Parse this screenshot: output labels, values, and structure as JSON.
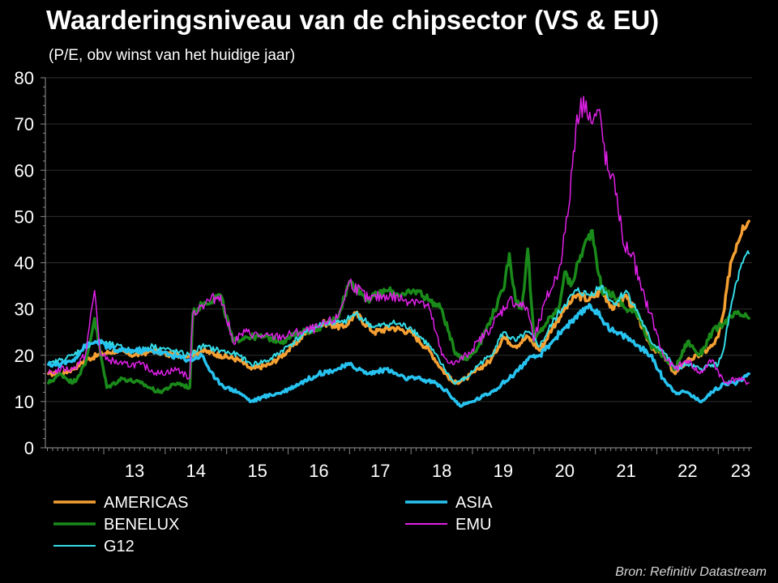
{
  "title": "Waarderingsniveau van de chipsector (VS & EU)",
  "subtitle": "(P/E, obv winst van het huidige jaar)",
  "source": "Bron: Refinitiv Datastream",
  "chart_data": {
    "type": "line",
    "ylim": [
      0,
      80
    ],
    "xlim": [
      2012.05,
      2023.55
    ],
    "y_ticks": [
      0,
      10,
      20,
      30,
      40,
      50,
      60,
      70,
      80
    ],
    "x_ticks": [
      {
        "label": "13",
        "value": 2013.0
      },
      {
        "label": "14",
        "value": 2014.0
      },
      {
        "label": "15",
        "value": 2015.0
      },
      {
        "label": "16",
        "value": 2016.0
      },
      {
        "label": "17",
        "value": 2017.0
      },
      {
        "label": "18",
        "value": 2018.0
      },
      {
        "label": "19",
        "value": 2019.0
      },
      {
        "label": "20",
        "value": 2020.0
      },
      {
        "label": "21",
        "value": 2021.0
      },
      {
        "label": "22",
        "value": 2022.0
      },
      {
        "label": "23",
        "value": 2023.0
      }
    ],
    "grid": true,
    "legend_position": "bottom",
    "series": [
      {
        "name": "AMERICAS",
        "color": "#f5a033",
        "width": 3.5,
        "x": [
          2012.1,
          2012.3,
          2012.5,
          2012.7,
          2012.9,
          2013.2,
          2013.5,
          2013.8,
          2014.1,
          2014.4,
          2014.6,
          2014.9,
          2015.2,
          2015.4,
          2015.7,
          2016.0,
          2016.3,
          2016.6,
          2016.9,
          2017.1,
          2017.4,
          2017.7,
          2018.0,
          2018.3,
          2018.5,
          2018.7,
          2018.9,
          2019.1,
          2019.3,
          2019.5,
          2019.7,
          2019.9,
          2020.1,
          2020.3,
          2020.5,
          2020.7,
          2020.9,
          2021.1,
          2021.3,
          2021.5,
          2021.7,
          2021.9,
          2022.1,
          2022.3,
          2022.5,
          2022.7,
          2022.9,
          2023.0,
          2023.1,
          2023.2,
          2023.3,
          2023.4,
          2023.5
        ],
        "y": [
          16,
          16,
          17,
          19,
          20,
          21,
          20,
          21,
          20,
          20,
          21,
          20,
          19,
          17,
          18,
          21,
          25,
          27,
          26,
          29,
          25,
          26,
          25,
          21,
          17,
          14,
          15,
          17,
          19,
          24,
          22,
          24,
          21,
          26,
          30,
          33,
          32,
          34,
          30,
          33,
          28,
          22,
          20,
          16,
          19,
          20,
          22,
          24,
          30,
          40,
          44,
          48,
          49
        ]
      },
      {
        "name": "BENELUX",
        "color": "#1a8a1a",
        "width": 3.5,
        "x": [
          2012.1,
          2012.3,
          2012.5,
          2012.7,
          2012.85,
          2012.95,
          2013.05,
          2013.3,
          2013.6,
          2013.9,
          2014.2,
          2014.4,
          2014.45,
          2014.6,
          2014.9,
          2015.1,
          2015.3,
          2015.6,
          2015.9,
          2016.2,
          2016.5,
          2016.8,
          2017.0,
          2017.3,
          2017.6,
          2017.9,
          2018.1,
          2018.3,
          2018.5,
          2018.7,
          2018.9,
          2019.1,
          2019.3,
          2019.5,
          2019.6,
          2019.7,
          2019.8,
          2019.9,
          2020.0,
          2020.2,
          2020.4,
          2020.5,
          2020.6,
          2020.8,
          2020.95,
          2021.1,
          2021.3,
          2021.5,
          2021.7,
          2021.9,
          2022.1,
          2022.3,
          2022.5,
          2022.7,
          2022.9,
          2023.1,
          2023.3,
          2023.5
        ],
        "y": [
          14,
          16,
          14,
          18,
          28,
          20,
          13,
          15,
          14,
          12,
          14,
          13,
          29,
          31,
          33,
          23,
          24,
          24,
          23,
          25,
          26,
          28,
          36,
          32,
          34,
          33,
          34,
          32,
          30,
          21,
          19,
          22,
          28,
          34,
          42,
          32,
          30,
          43,
          23,
          27,
          30,
          38,
          35,
          43,
          47,
          34,
          33,
          30,
          29,
          22,
          20,
          17,
          23,
          20,
          25,
          27,
          29,
          28
        ]
      },
      {
        "name": "G12",
        "color": "#33dde8",
        "width": 2,
        "x": [
          2012.1,
          2012.3,
          2012.5,
          2012.7,
          2012.9,
          2013.2,
          2013.5,
          2013.8,
          2014.1,
          2014.4,
          2014.6,
          2014.9,
          2015.2,
          2015.4,
          2015.7,
          2016.0,
          2016.3,
          2016.6,
          2016.9,
          2017.1,
          2017.4,
          2017.7,
          2018.0,
          2018.3,
          2018.5,
          2018.7,
          2018.9,
          2019.1,
          2019.3,
          2019.5,
          2019.7,
          2019.9,
          2020.1,
          2020.3,
          2020.5,
          2020.7,
          2020.9,
          2021.1,
          2021.3,
          2021.5,
          2021.7,
          2021.9,
          2022.1,
          2022.3,
          2022.5,
          2022.7,
          2022.9,
          2023.0,
          2023.1,
          2023.2,
          2023.3,
          2023.4,
          2023.5
        ],
        "y": [
          18,
          19,
          20,
          22,
          23,
          22,
          21,
          22,
          21,
          20,
          22,
          21,
          20,
          18,
          19,
          22,
          25,
          27,
          27,
          29,
          26,
          27,
          26,
          22,
          18,
          14,
          15,
          18,
          20,
          25,
          23,
          25,
          22,
          27,
          31,
          34,
          33,
          35,
          31,
          34,
          29,
          23,
          21,
          17,
          18,
          17,
          18,
          18,
          22,
          30,
          36,
          40,
          42
        ]
      },
      {
        "name": "ASIA",
        "color": "#27c3f0",
        "width": 3.5,
        "x": [
          2012.1,
          2012.3,
          2012.5,
          2012.7,
          2012.9,
          2013.2,
          2013.5,
          2013.8,
          2014.1,
          2014.4,
          2014.6,
          2014.8,
          2015.0,
          2015.2,
          2015.4,
          2015.6,
          2015.9,
          2016.2,
          2016.5,
          2016.8,
          2017.0,
          2017.3,
          2017.6,
          2017.9,
          2018.1,
          2018.4,
          2018.6,
          2018.8,
          2019.0,
          2019.3,
          2019.6,
          2019.9,
          2020.1,
          2020.3,
          2020.5,
          2020.7,
          2020.9,
          2021.1,
          2021.3,
          2021.5,
          2021.7,
          2021.9,
          2022.1,
          2022.3,
          2022.5,
          2022.7,
          2022.9,
          2023.1,
          2023.3,
          2023.5
        ],
        "y": [
          18,
          18,
          19,
          22,
          23,
          21,
          21,
          21,
          20,
          19,
          20,
          15,
          13,
          12,
          10,
          11,
          12,
          14,
          16,
          17,
          18,
          16,
          17,
          15,
          15,
          14,
          12,
          9,
          10,
          12,
          15,
          19,
          20,
          23,
          26,
          28,
          31,
          28,
          25,
          24,
          22,
          20,
          15,
          12,
          12,
          10,
          12,
          14,
          14,
          16
        ]
      },
      {
        "name": "EMU",
        "color": "#e020e8",
        "width": 1.5,
        "x": [
          2012.1,
          2012.3,
          2012.5,
          2012.7,
          2012.85,
          2012.95,
          2013.1,
          2013.3,
          2013.6,
          2013.9,
          2014.2,
          2014.4,
          2014.45,
          2014.6,
          2014.9,
          2015.1,
          2015.3,
          2015.6,
          2015.9,
          2016.2,
          2016.5,
          2016.8,
          2017.0,
          2017.3,
          2017.6,
          2017.9,
          2018.1,
          2018.3,
          2018.5,
          2018.7,
          2018.9,
          2019.1,
          2019.3,
          2019.6,
          2019.9,
          2020.0,
          2020.2,
          2020.4,
          2020.55,
          2020.7,
          2020.85,
          2020.95,
          2021.05,
          2021.2,
          2021.35,
          2021.45,
          2021.6,
          2021.75,
          2021.9,
          2022.1,
          2022.3,
          2022.5,
          2022.7,
          2022.9,
          2023.1,
          2023.3,
          2023.5
        ],
        "y": [
          16,
          17,
          17,
          20,
          34,
          20,
          19,
          18,
          18,
          16,
          17,
          15,
          29,
          31,
          33,
          23,
          25,
          24,
          24,
          25,
          26,
          28,
          36,
          32,
          33,
          32,
          32,
          30,
          20,
          18,
          20,
          23,
          26,
          32,
          30,
          23,
          32,
          38,
          50,
          72,
          75,
          70,
          73,
          60,
          55,
          44,
          42,
          34,
          29,
          20,
          17,
          19,
          16,
          19,
          14,
          15,
          14
        ]
      }
    ]
  }
}
